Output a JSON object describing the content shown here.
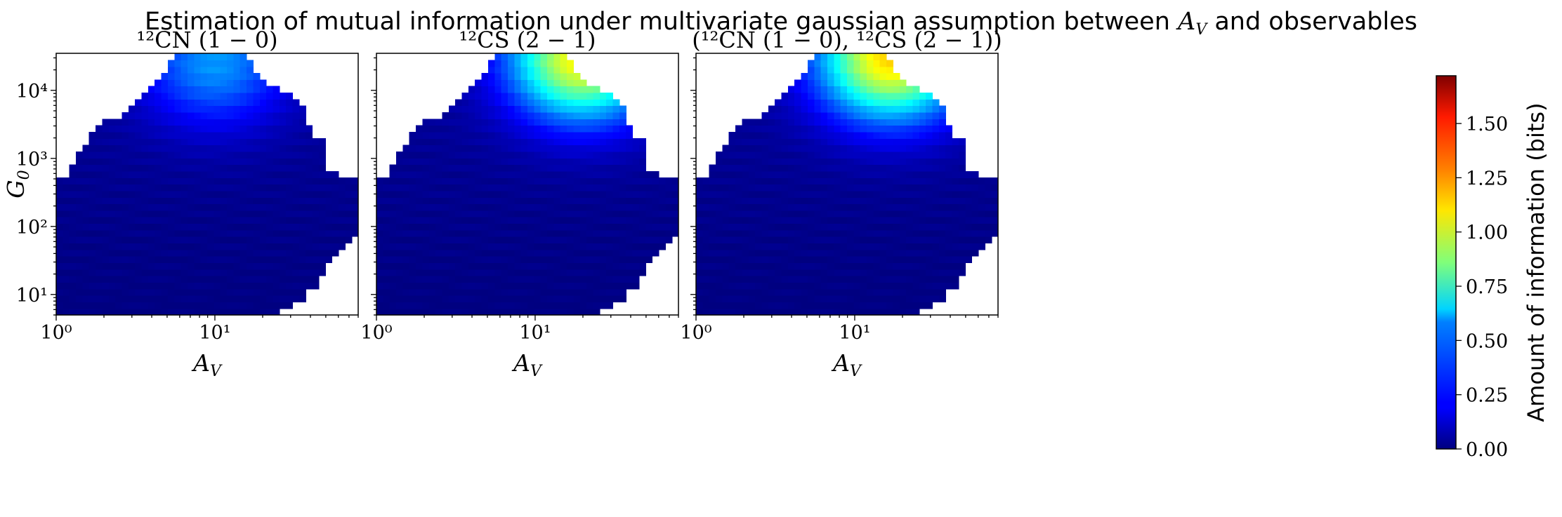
{
  "figure": {
    "suptitle_prefix": "Estimation of mutual information under multivariate gaussian assumption between ",
    "suptitle_var": "A",
    "suptitle_var_sub": "V",
    "suptitle_suffix": " and observables"
  },
  "colorbar": {
    "label": "Amount of information (bits)",
    "ticks": [
      "0.00",
      "0.25",
      "0.50",
      "0.75",
      "1.00",
      "1.25",
      "1.50"
    ],
    "colormap": "jet",
    "colors": {
      "low": "#00007f",
      "high": "#7f0000"
    }
  },
  "chart_data": [
    {
      "type": "heatmap",
      "title": "¹²CN (1 − 0)",
      "xlabel": "A_V",
      "ylabel": "G_0",
      "x_scale": "log",
      "y_scale": "log",
      "xlim": [
        1,
        80
      ],
      "ylim": [
        5,
        35000
      ],
      "x_ticks": [
        "10⁰",
        "10¹"
      ],
      "y_ticks": [
        "10¹",
        "10²",
        "10³",
        "10⁴"
      ],
      "clim": [
        0,
        1.72
      ],
      "peak_value": 0.42,
      "peak_location": {
        "A_V": 10,
        "G_0": 25000
      },
      "value_range": [
        0.0,
        0.42
      ],
      "upper_edge_log10G0": [
        2.7,
        2.7,
        2.9,
        3.1,
        3.2,
        3.4,
        3.5,
        3.6,
        3.6,
        3.6,
        3.7,
        3.8,
        3.9,
        4.0,
        4.1,
        4.2,
        4.3,
        4.4,
        4.5,
        4.6,
        4.6,
        4.6,
        4.6,
        4.6,
        4.6,
        4.6,
        4.6,
        4.6,
        4.5,
        4.4,
        4.3,
        4.2,
        4.1,
        4.1,
        4.0,
        4.0,
        3.9,
        3.8,
        3.5,
        3.3,
        3.3,
        2.8,
        2.8,
        2.7,
        2.7,
        2.7
      ],
      "lower_edge_log10G0": [
        0.7,
        0.7,
        0.7,
        0.7,
        0.7,
        0.7,
        0.7,
        0.7,
        0.7,
        0.7,
        0.7,
        0.7,
        0.7,
        0.7,
        0.7,
        0.7,
        0.7,
        0.7,
        0.7,
        0.7,
        0.7,
        0.7,
        0.7,
        0.7,
        0.7,
        0.7,
        0.7,
        0.7,
        0.7,
        0.7,
        0.7,
        0.7,
        0.7,
        0.7,
        0.8,
        0.8,
        0.9,
        0.9,
        1.1,
        1.1,
        1.3,
        1.5,
        1.6,
        1.7,
        1.8,
        1.9
      ]
    },
    {
      "type": "heatmap",
      "title": "¹²CS (2 − 1)",
      "xlabel": "A_V",
      "ylabel": "",
      "x_scale": "log",
      "y_scale": "log",
      "xlim": [
        1,
        80
      ],
      "ylim": [
        5,
        35000
      ],
      "x_ticks": [
        "10⁰",
        "10¹"
      ],
      "y_ticks": [
        "10¹",
        "10²",
        "10³",
        "10⁴"
      ],
      "clim": [
        0,
        1.72
      ],
      "peak_value": 1.05,
      "peak_location": {
        "A_V": 20,
        "G_0": 30000
      },
      "value_range": [
        0.0,
        1.05
      ],
      "upper_edge_log10G0": [
        2.7,
        2.7,
        2.9,
        3.1,
        3.2,
        3.4,
        3.5,
        3.6,
        3.6,
        3.6,
        3.7,
        3.8,
        3.9,
        4.0,
        4.1,
        4.2,
        4.3,
        4.4,
        4.5,
        4.6,
        4.6,
        4.6,
        4.6,
        4.6,
        4.6,
        4.6,
        4.6,
        4.6,
        4.5,
        4.4,
        4.3,
        4.2,
        4.1,
        4.1,
        4.0,
        4.0,
        3.9,
        3.8,
        3.5,
        3.3,
        3.3,
        2.8,
        2.8,
        2.7,
        2.7,
        2.7
      ],
      "lower_edge_log10G0": [
        0.7,
        0.7,
        0.7,
        0.7,
        0.7,
        0.7,
        0.7,
        0.7,
        0.7,
        0.7,
        0.7,
        0.7,
        0.7,
        0.7,
        0.7,
        0.7,
        0.7,
        0.7,
        0.7,
        0.7,
        0.7,
        0.7,
        0.7,
        0.7,
        0.7,
        0.7,
        0.7,
        0.7,
        0.7,
        0.7,
        0.7,
        0.7,
        0.7,
        0.7,
        0.8,
        0.8,
        0.9,
        0.9,
        1.1,
        1.1,
        1.3,
        1.5,
        1.6,
        1.7,
        1.8,
        1.9
      ]
    },
    {
      "type": "heatmap",
      "title": "(¹²CN (1 − 0), ¹²CS (2 − 1))",
      "xlabel": "A_V",
      "ylabel": "",
      "x_scale": "log",
      "y_scale": "log",
      "xlim": [
        1,
        80
      ],
      "ylim": [
        5,
        35000
      ],
      "x_ticks": [
        "10⁰",
        "10¹"
      ],
      "y_ticks": [
        "10¹",
        "10²",
        "10³",
        "10⁴"
      ],
      "clim": [
        0,
        1.72
      ],
      "peak_value": 1.1,
      "peak_location": {
        "A_V": 17,
        "G_0": 30000
      },
      "value_range": [
        0.0,
        1.1
      ],
      "upper_edge_log10G0": [
        2.7,
        2.7,
        2.9,
        3.1,
        3.2,
        3.4,
        3.5,
        3.6,
        3.6,
        3.6,
        3.7,
        3.8,
        3.9,
        4.0,
        4.1,
        4.2,
        4.3,
        4.4,
        4.5,
        4.6,
        4.6,
        4.6,
        4.6,
        4.6,
        4.6,
        4.6,
        4.6,
        4.6,
        4.5,
        4.4,
        4.3,
        4.2,
        4.1,
        4.1,
        4.0,
        4.0,
        3.9,
        3.8,
        3.5,
        3.3,
        3.3,
        2.8,
        2.8,
        2.7,
        2.7,
        2.7
      ],
      "lower_edge_log10G0": [
        0.7,
        0.7,
        0.7,
        0.7,
        0.7,
        0.7,
        0.7,
        0.7,
        0.7,
        0.7,
        0.7,
        0.7,
        0.7,
        0.7,
        0.7,
        0.7,
        0.7,
        0.7,
        0.7,
        0.7,
        0.7,
        0.7,
        0.7,
        0.7,
        0.7,
        0.7,
        0.7,
        0.7,
        0.7,
        0.7,
        0.7,
        0.7,
        0.7,
        0.7,
        0.8,
        0.8,
        0.9,
        0.9,
        1.1,
        1.1,
        1.3,
        1.5,
        1.6,
        1.7,
        1.8,
        1.9
      ]
    }
  ]
}
